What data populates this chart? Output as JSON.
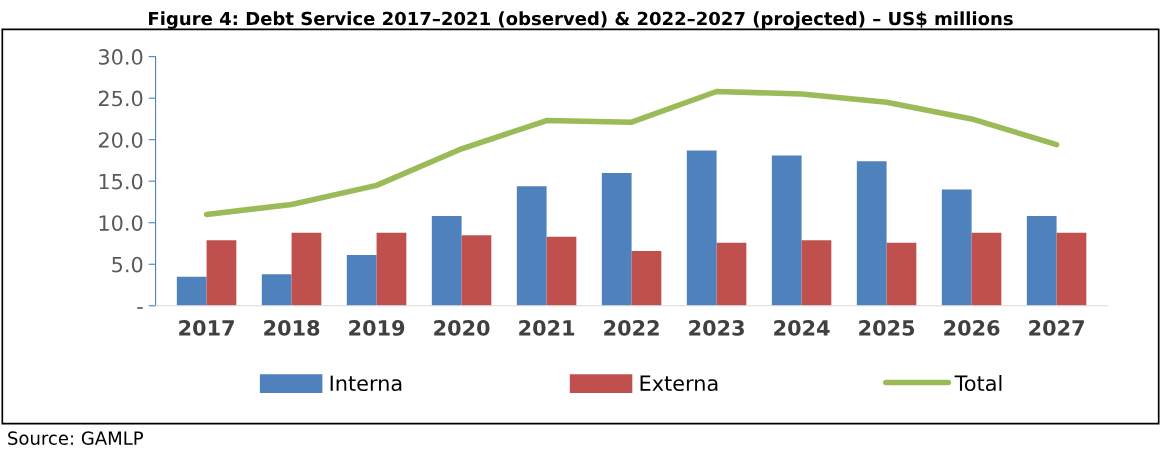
{
  "chart_data": {
    "type": "bar",
    "title": "Figure 4: Debt Service 2017–2021 (observed) & 2022–2027 (projected) – US$ millions",
    "categories": [
      "2017",
      "2018",
      "2019",
      "2020",
      "2021",
      "2022",
      "2023",
      "2024",
      "2025",
      "2026",
      "2027"
    ],
    "series": [
      {
        "name": "Interna",
        "color": "#4f81bd",
        "values": [
          3.5,
          3.8,
          6.1,
          10.8,
          14.4,
          16.0,
          18.7,
          18.1,
          17.4,
          14.0,
          10.8
        ]
      },
      {
        "name": "Externa",
        "color": "#c0504d",
        "values": [
          7.9,
          8.8,
          8.8,
          8.5,
          8.3,
          6.6,
          7.6,
          7.9,
          7.6,
          8.8,
          8.8
        ]
      },
      {
        "name": "Total",
        "type": "line",
        "color": "#9bbb59",
        "values": [
          11.0,
          12.2,
          14.5,
          18.9,
          22.3,
          22.1,
          25.8,
          25.5,
          24.5,
          22.5,
          19.4
        ]
      }
    ],
    "ylim": [
      0,
      30
    ],
    "yticks": [
      {
        "value": 0,
        "label": "-"
      },
      {
        "value": 5,
        "label": "5.0"
      },
      {
        "value": 10,
        "label": "10.0"
      },
      {
        "value": 15,
        "label": "15.0"
      },
      {
        "value": 20,
        "label": "20.0"
      },
      {
        "value": 25,
        "label": "25.0"
      },
      {
        "value": 30,
        "label": "30.0"
      }
    ],
    "grid": false,
    "legend": "bottom",
    "marker": "none",
    "annotations": [
      "Source: GAMLP"
    ]
  }
}
